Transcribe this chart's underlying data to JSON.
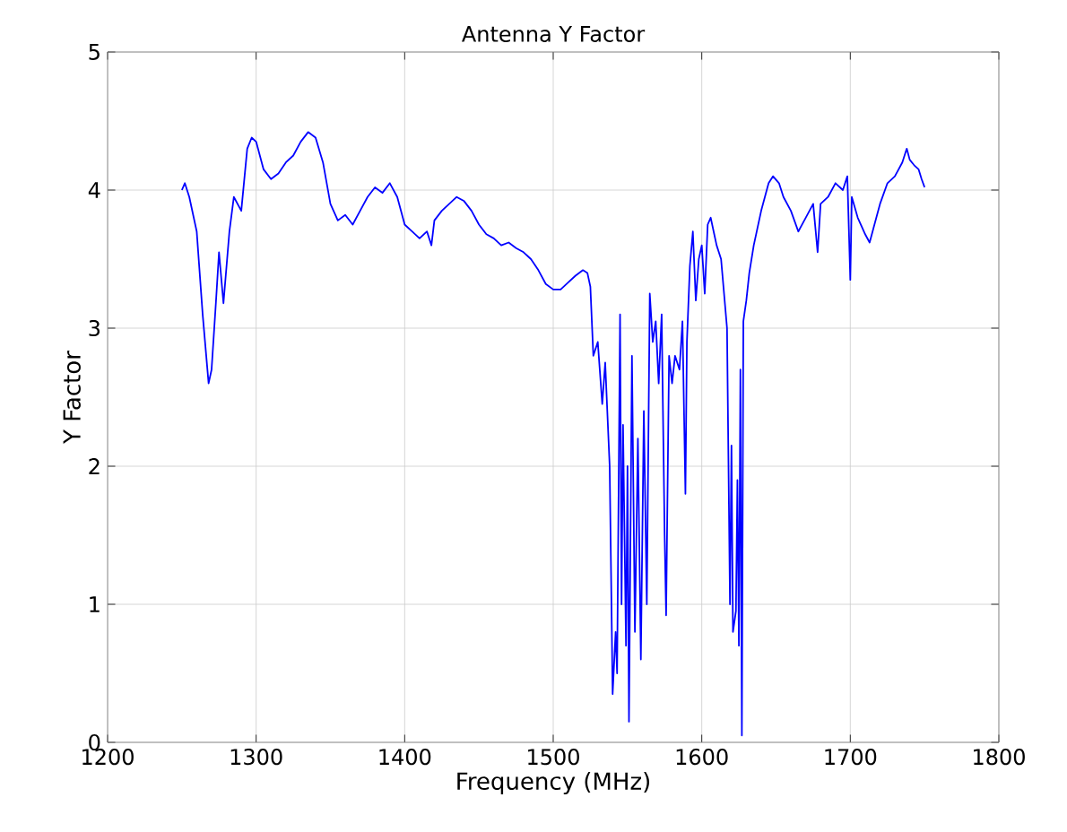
{
  "chart_data": {
    "type": "line",
    "title": "Antenna Y Factor",
    "xlabel": "Frequency (MHz)",
    "ylabel": "Y Factor",
    "xlim": [
      1200,
      1800
    ],
    "xticks": [
      1200,
      1300,
      1400,
      1500,
      1600,
      1700,
      1800
    ],
    "ylim": [
      0,
      5
    ],
    "yticks": [
      0,
      1,
      2,
      3,
      4,
      5
    ],
    "grid": true,
    "marker": "none",
    "line_style": "solid",
    "series": [
      {
        "color": "#0000ff",
        "x": [
          1250,
          1252,
          1255,
          1260,
          1264,
          1268,
          1270,
          1273,
          1275,
          1278,
          1282,
          1285,
          1290,
          1294,
          1297,
          1300,
          1305,
          1310,
          1315,
          1320,
          1325,
          1330,
          1335,
          1340,
          1345,
          1350,
          1355,
          1360,
          1365,
          1370,
          1375,
          1380,
          1385,
          1390,
          1395,
          1400,
          1405,
          1410,
          1415,
          1418,
          1420,
          1425,
          1430,
          1435,
          1440,
          1445,
          1450,
          1455,
          1460,
          1465,
          1470,
          1475,
          1480,
          1485,
          1490,
          1495,
          1500,
          1505,
          1510,
          1515,
          1520,
          1523,
          1525,
          1527,
          1530,
          1533,
          1535,
          1538,
          1540,
          1542,
          1543,
          1545,
          1546,
          1547,
          1549,
          1550,
          1551,
          1553,
          1555,
          1557,
          1559,
          1561,
          1563,
          1565,
          1567,
          1569,
          1571,
          1573,
          1575,
          1576,
          1578,
          1580,
          1582,
          1585,
          1587,
          1589,
          1590,
          1592,
          1594,
          1596,
          1598,
          1600,
          1602,
          1604,
          1606,
          1608,
          1610,
          1613,
          1617,
          1619,
          1620,
          1621,
          1623,
          1624,
          1625,
          1626,
          1627,
          1628,
          1630,
          1632,
          1635,
          1640,
          1645,
          1648,
          1652,
          1655,
          1660,
          1665,
          1670,
          1675,
          1678,
          1680,
          1685,
          1690,
          1695,
          1698,
          1700,
          1701,
          1705,
          1710,
          1713,
          1715,
          1720,
          1725,
          1730,
          1735,
          1738,
          1740,
          1743,
          1746,
          1748,
          1750
        ],
        "values": [
          4.0,
          4.05,
          3.95,
          3.7,
          3.1,
          2.6,
          2.7,
          3.2,
          3.55,
          3.18,
          3.7,
          3.95,
          3.85,
          4.3,
          4.38,
          4.35,
          4.15,
          4.08,
          4.12,
          4.2,
          4.25,
          4.35,
          4.42,
          4.38,
          4.2,
          3.9,
          3.78,
          3.82,
          3.75,
          3.85,
          3.95,
          4.02,
          3.98,
          4.05,
          3.95,
          3.75,
          3.7,
          3.65,
          3.7,
          3.6,
          3.78,
          3.85,
          3.9,
          3.95,
          3.92,
          3.85,
          3.75,
          3.68,
          3.65,
          3.6,
          3.62,
          3.58,
          3.55,
          3.5,
          3.42,
          3.32,
          3.28,
          3.28,
          3.33,
          3.38,
          3.42,
          3.4,
          3.3,
          2.8,
          2.9,
          2.45,
          2.75,
          2.0,
          0.35,
          0.8,
          0.5,
          3.1,
          1.0,
          2.3,
          0.7,
          2.0,
          0.15,
          2.8,
          0.8,
          2.2,
          0.6,
          2.4,
          1.0,
          3.25,
          2.9,
          3.05,
          2.6,
          3.1,
          1.5,
          0.92,
          2.8,
          2.6,
          2.8,
          2.7,
          3.05,
          1.8,
          2.9,
          3.45,
          3.7,
          3.2,
          3.5,
          3.6,
          3.25,
          3.75,
          3.8,
          3.7,
          3.6,
          3.5,
          3.0,
          1.0,
          2.15,
          0.8,
          0.95,
          1.9,
          0.7,
          2.7,
          0.05,
          3.05,
          3.2,
          3.4,
          3.6,
          3.85,
          4.05,
          4.1,
          4.05,
          3.95,
          3.85,
          3.7,
          3.8,
          3.9,
          3.55,
          3.9,
          3.95,
          4.05,
          4.0,
          4.1,
          3.35,
          3.95,
          3.8,
          3.68,
          3.62,
          3.7,
          3.9,
          4.05,
          4.1,
          4.2,
          4.3,
          4.22,
          4.18,
          4.15,
          4.08,
          4.02
        ]
      }
    ]
  }
}
